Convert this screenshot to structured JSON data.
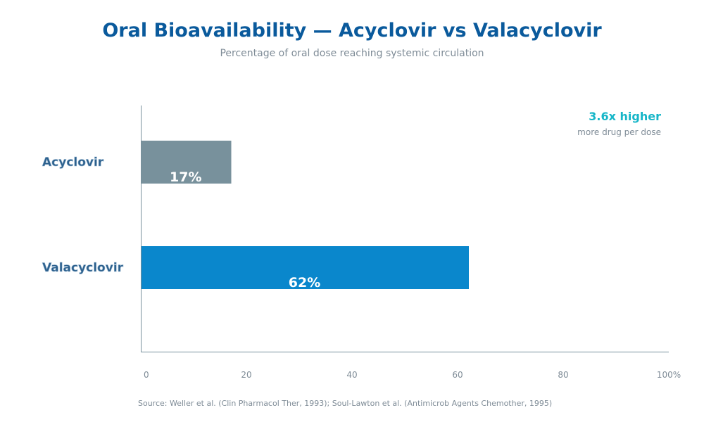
{
  "title": "Oral Bioavailability — Acyclovir vs Valacyclovir",
  "subtitle": "Percentage of oral dose reaching systemic circulation",
  "callout": {
    "value": "3.6x higher",
    "label": "more drug per dose"
  },
  "source": "Source: Weller et al. (Clin Pharmacol Ther, 1993); Soul-Lawton et al. (Antimicrob Agents Chemother, 1995)",
  "colors": {
    "acyclovir": "#78919c",
    "valacyclovir": "#0a87cc",
    "title": "#0a5a9c",
    "callout": "#16b6c8"
  },
  "chart_data": {
    "type": "bar",
    "orientation": "horizontal",
    "categories": [
      "Acyclovir",
      "Valacyclovir"
    ],
    "values": [
      17,
      62
    ],
    "value_labels": [
      "17%",
      "62%"
    ],
    "xlim": [
      0,
      100
    ],
    "x_ticks": [
      0,
      20,
      40,
      60,
      80,
      100
    ],
    "x_tick_labels": [
      "0",
      "20",
      "40",
      "60",
      "80",
      "100%"
    ],
    "grid": false,
    "legend": "none"
  }
}
